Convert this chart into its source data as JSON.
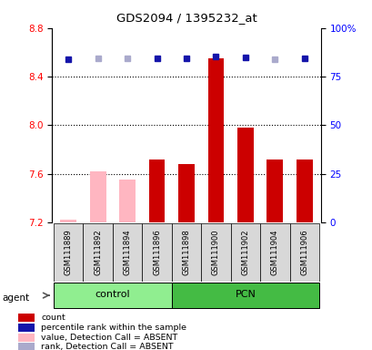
{
  "title": "GDS2094 / 1395232_at",
  "samples": [
    "GSM111889",
    "GSM111892",
    "GSM111894",
    "GSM111896",
    "GSM111898",
    "GSM111900",
    "GSM111902",
    "GSM111904",
    "GSM111906"
  ],
  "values": [
    7.22,
    7.62,
    7.55,
    7.72,
    7.68,
    8.55,
    7.98,
    7.72,
    7.72
  ],
  "absent_mask": [
    true,
    true,
    true,
    false,
    false,
    false,
    false,
    false,
    false
  ],
  "percentile_ranks": [
    84.0,
    84.5,
    84.3,
    84.5,
    84.5,
    85.5,
    84.8,
    83.8,
    84.6
  ],
  "rank_absent_mask": [
    false,
    true,
    true,
    false,
    false,
    false,
    false,
    true,
    false
  ],
  "ylim_left": [
    7.2,
    8.8
  ],
  "ylim_right": [
    0,
    100
  ],
  "yticks_left": [
    7.2,
    7.6,
    8.0,
    8.4,
    8.8
  ],
  "yticks_right": [
    0,
    25,
    50,
    75,
    100
  ],
  "ytick_labels_right": [
    "0",
    "25",
    "50",
    "75",
    "100%"
  ],
  "hlines": [
    7.6,
    8.0,
    8.4
  ],
  "bar_color_present": "#CC0000",
  "bar_color_absent": "#FFB6C1",
  "dot_color_present": "#1515AA",
  "dot_color_absent": "#AAAACC",
  "control_color": "#90EE90",
  "pcn_color": "#44BB44",
  "group_ranges": [
    [
      0,
      3,
      "control"
    ],
    [
      4,
      8,
      "PCN"
    ]
  ],
  "legend_items": [
    {
      "color": "#CC0000",
      "label": "count"
    },
    {
      "color": "#1515AA",
      "label": "percentile rank within the sample"
    },
    {
      "color": "#FFB6C1",
      "label": "value, Detection Call = ABSENT"
    },
    {
      "color": "#AAAACC",
      "label": "rank, Detection Call = ABSENT"
    }
  ]
}
